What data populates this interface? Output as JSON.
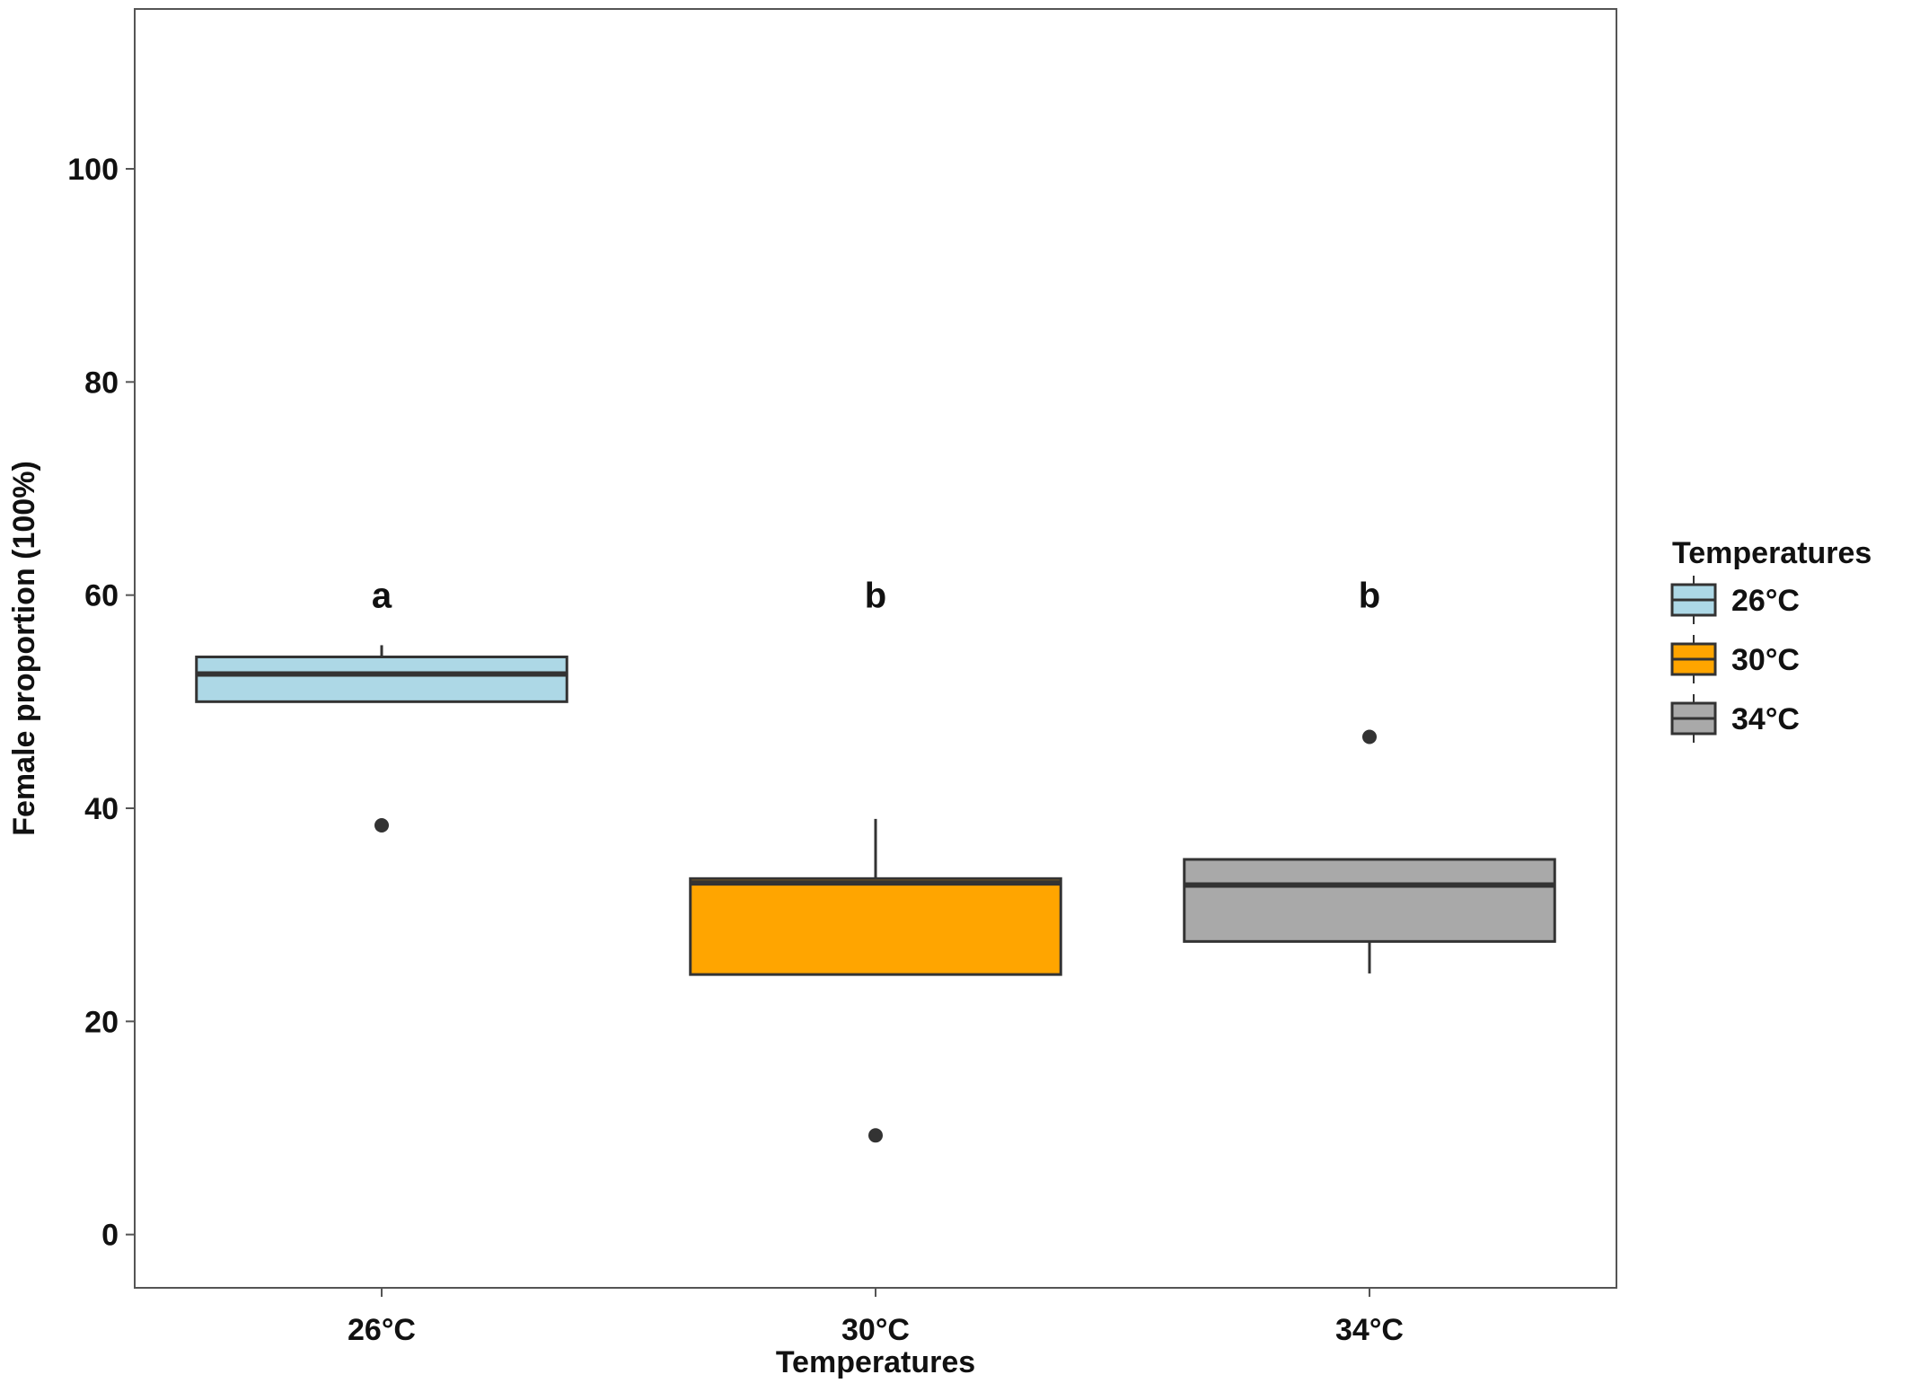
{
  "chart_data": {
    "type": "boxplot",
    "title": "",
    "xlabel": "Temperatures",
    "ylabel": "Female proportion (100%)",
    "ylim": [
      -5,
      115
    ],
    "y_ticks": [
      0,
      20,
      40,
      60,
      80,
      100
    ],
    "grid": false,
    "legend": {
      "title": "Temperatures",
      "placement": "right",
      "entries": [
        "26°C",
        "30°C",
        "34°C"
      ]
    },
    "categories": [
      "26°C",
      "30°C",
      "34°C"
    ],
    "series": [
      {
        "name": "26°C",
        "color": "#ADD8E6",
        "q1": 50.0,
        "median": 52.6,
        "q3": 54.2,
        "whisker_low": 50.0,
        "whisker_high": 55.3,
        "outliers": [
          38.4
        ],
        "significance": "a"
      },
      {
        "name": "30°C",
        "color": "#FFA500",
        "q1": 24.4,
        "median": 33.0,
        "q3": 33.4,
        "whisker_low": 24.4,
        "whisker_high": 39.0,
        "outliers": [
          9.3
        ],
        "significance": "b"
      },
      {
        "name": "34°C",
        "color": "#A9A9A9",
        "q1": 27.5,
        "median": 32.8,
        "q3": 35.2,
        "whisker_low": 24.5,
        "whisker_high": 35.2,
        "outliers": [
          46.7
        ],
        "significance": "b"
      }
    ]
  }
}
